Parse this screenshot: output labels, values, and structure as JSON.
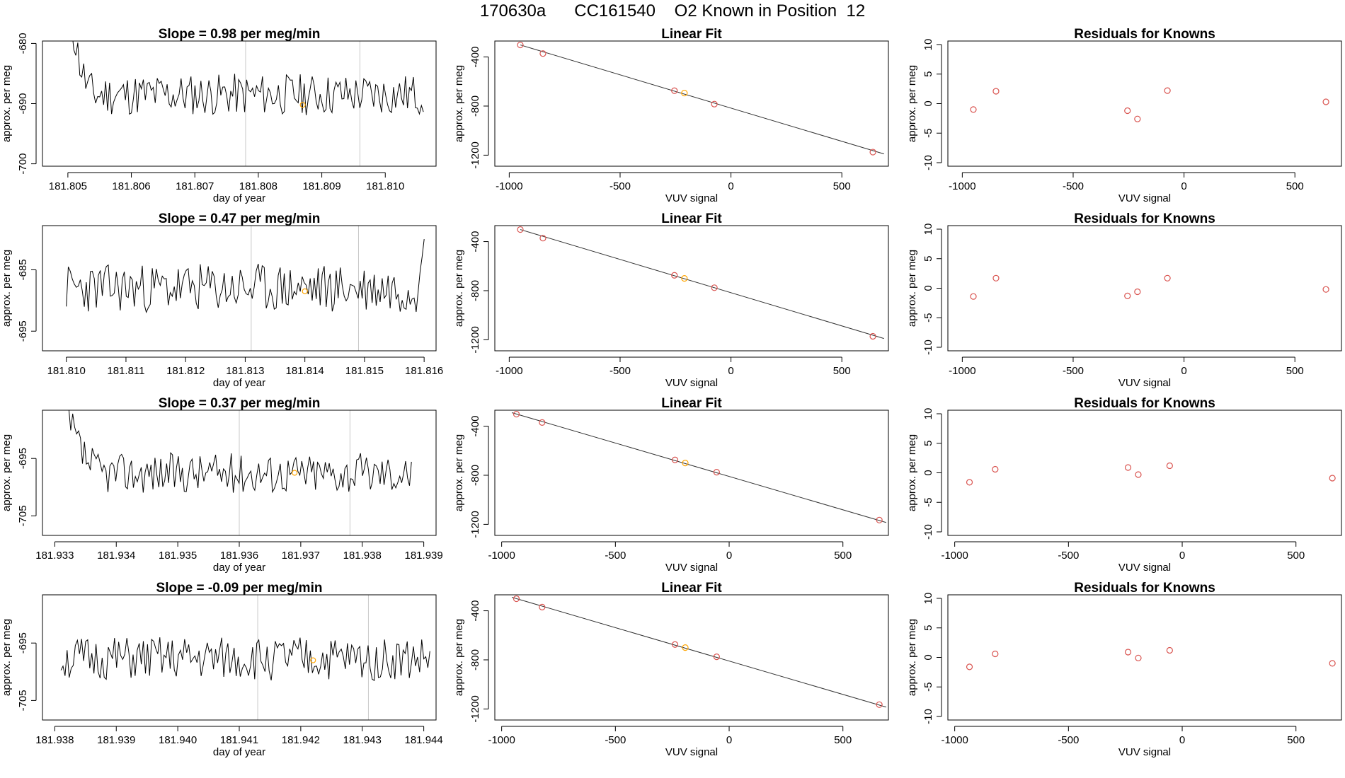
{
  "page": {
    "title": "170630a      CC161540    O2 Known in Position  12"
  },
  "chart_data": [
    {
      "type": "line",
      "row": 0,
      "title": "Slope =  0.98  per meg/min",
      "xlabel": "day of year",
      "ylabel": "approx. per meg",
      "xlim": [
        181.8046,
        181.8108
      ],
      "ylim": [
        -700.4,
        -679.6
      ],
      "xticks": [
        "181.805",
        "181.806",
        "181.807",
        "181.808",
        "181.809",
        "181.810"
      ],
      "yticks": [
        "-680",
        "-690",
        "-700"
      ],
      "vlines": [
        181.8078,
        181.8096
      ],
      "marker": {
        "x": 181.8087,
        "y": -690.2,
        "color": "#FFA500"
      },
      "series": [
        {
          "x_start": 181.805,
          "x_end": 181.8106,
          "n": 180,
          "baseline": -688.5,
          "amplitude": 3.5,
          "seed": 11,
          "spike_start": -672,
          "spike_len": 14
        }
      ]
    },
    {
      "type": "line",
      "row": 1,
      "title": "Slope =  0.47  per meg/min",
      "xlabel": "day of year",
      "ylabel": "approx. per meg",
      "xlim": [
        181.8096,
        181.8162
      ],
      "ylim": [
        -698.2,
        -677.8
      ],
      "xticks": [
        "181.810",
        "181.811",
        "181.812",
        "181.813",
        "181.814",
        "181.815",
        "181.816"
      ],
      "yticks": [
        "-685",
        "-695"
      ],
      "vlines": [
        181.8131,
        181.8149
      ],
      "marker": {
        "x": 181.814,
        "y": -688.5,
        "color": "#FFA500"
      },
      "series": [
        {
          "x_start": 181.81,
          "x_end": 181.816,
          "n": 180,
          "baseline": -688.0,
          "amplitude": 4.0,
          "seed": 23,
          "end_rise": -680
        }
      ]
    },
    {
      "type": "line",
      "row": 2,
      "title": "Slope =  0.37  per meg/min",
      "xlabel": "day of year",
      "ylabel": "approx. per meg",
      "xlim": [
        181.9328,
        181.9392
      ],
      "ylim": [
        -708.4,
        -686.6
      ],
      "xticks": [
        "181.933",
        "181.934",
        "181.935",
        "181.936",
        "181.937",
        "181.938",
        "181.939"
      ],
      "yticks": [
        "-695",
        "-705"
      ],
      "vlines": [
        181.936,
        181.9378
      ],
      "marker": {
        "x": 181.9369,
        "y": -697.5,
        "color": "#FFA500"
      },
      "series": [
        {
          "x_start": 181.9331,
          "x_end": 181.9388,
          "n": 180,
          "baseline": -697.5,
          "amplitude": 3.5,
          "seed": 37,
          "spike_start": -684,
          "spike_len": 22
        }
      ]
    },
    {
      "type": "line",
      "row": 3,
      "title": "Slope =  -0.09  per meg/min",
      "xlabel": "day of year",
      "ylabel": "approx. per meg",
      "xlim": [
        181.9378,
        181.9442
      ],
      "ylim": [
        -708.4,
        -686.6
      ],
      "xticks": [
        "181.938",
        "181.939",
        "181.940",
        "181.941",
        "181.942",
        "181.943",
        "181.944"
      ],
      "yticks": [
        "-695",
        "-705"
      ],
      "vlines": [
        181.9413,
        181.9431
      ],
      "marker": {
        "x": 181.9422,
        "y": -698.0,
        "color": "#FFA500"
      },
      "series": [
        {
          "x_start": 181.9381,
          "x_end": 181.9441,
          "n": 180,
          "baseline": -697.8,
          "amplitude": 3.8,
          "seed": 51
        }
      ]
    },
    {
      "type": "scatter",
      "row": 0,
      "title": "Linear Fit",
      "xlabel": "VUV signal",
      "ylabel": "approx. per meg",
      "xlim": [
        -1065,
        710
      ],
      "ylim": [
        -1290,
        -270
      ],
      "xticks": [
        "-1000",
        "-500",
        "0",
        "500"
      ],
      "yticks": [
        "-400",
        "-800",
        "-1200"
      ],
      "fit": {
        "x": [
          -950,
          690
        ],
        "y": [
          -302,
          -1190
        ]
      },
      "points": [
        {
          "x": -950,
          "y": -302,
          "color": "#D9534F"
        },
        {
          "x": -848,
          "y": -372,
          "color": "#D9534F"
        },
        {
          "x": -255,
          "y": -675,
          "color": "#D9534F"
        },
        {
          "x": -210,
          "y": -694,
          "color": "#FFA500"
        },
        {
          "x": -75,
          "y": -784,
          "color": "#D9534F"
        },
        {
          "x": 640,
          "y": -1175,
          "color": "#D9534F"
        }
      ]
    },
    {
      "type": "scatter",
      "row": 1,
      "title": "Linear Fit",
      "xlabel": "VUV signal",
      "ylabel": "approx. per meg",
      "xlim": [
        -1065,
        710
      ],
      "ylim": [
        -1290,
        -270
      ],
      "xticks": [
        "-1000",
        "-500",
        "0",
        "500"
      ],
      "yticks": [
        "-400",
        "-800",
        "-1200"
      ],
      "fit": {
        "x": [
          -950,
          690
        ],
        "y": [
          -302,
          -1190
        ]
      },
      "points": [
        {
          "x": -950,
          "y": -302,
          "color": "#D9534F"
        },
        {
          "x": -848,
          "y": -372,
          "color": "#D9534F"
        },
        {
          "x": -255,
          "y": -675,
          "color": "#D9534F"
        },
        {
          "x": -210,
          "y": -700,
          "color": "#FFA500"
        },
        {
          "x": -75,
          "y": -776,
          "color": "#D9534F"
        },
        {
          "x": 640,
          "y": -1172,
          "color": "#D9534F"
        }
      ]
    },
    {
      "type": "scatter",
      "row": 2,
      "title": "Linear Fit",
      "xlabel": "VUV signal",
      "ylabel": "approx. per meg",
      "xlim": [
        -1030,
        700
      ],
      "ylim": [
        -1290,
        -270
      ],
      "xticks": [
        "-1000",
        "-500",
        "0",
        "500"
      ],
      "yticks": [
        "-400",
        "-800",
        "-1200"
      ],
      "fit": {
        "x": [
          -955,
          690
        ],
        "y": [
          -290,
          -1185
        ]
      },
      "points": [
        {
          "x": -935,
          "y": -302,
          "color": "#D9534F"
        },
        {
          "x": -822,
          "y": -370,
          "color": "#D9534F"
        },
        {
          "x": -238,
          "y": -675,
          "color": "#D9534F"
        },
        {
          "x": -193,
          "y": -700,
          "color": "#FFA500"
        },
        {
          "x": -55,
          "y": -775,
          "color": "#D9534F"
        },
        {
          "x": 660,
          "y": -1165,
          "color": "#D9534F"
        }
      ]
    },
    {
      "type": "scatter",
      "row": 3,
      "title": "Linear Fit",
      "xlabel": "VUV signal",
      "ylabel": "approx. per meg",
      "xlim": [
        -1030,
        700
      ],
      "ylim": [
        -1290,
        -270
      ],
      "xticks": [
        "-1000",
        "-500",
        "0",
        "500"
      ],
      "yticks": [
        "-400",
        "-800",
        "-1200"
      ],
      "fit": {
        "x": [
          -955,
          690
        ],
        "y": [
          -290,
          -1185
        ]
      },
      "points": [
        {
          "x": -935,
          "y": -302,
          "color": "#D9534F"
        },
        {
          "x": -822,
          "y": -370,
          "color": "#D9534F"
        },
        {
          "x": -238,
          "y": -675,
          "color": "#D9534F"
        },
        {
          "x": -193,
          "y": -700,
          "color": "#FFA500"
        },
        {
          "x": -55,
          "y": -775,
          "color": "#D9534F"
        },
        {
          "x": 660,
          "y": -1165,
          "color": "#D9534F"
        }
      ]
    },
    {
      "type": "scatter",
      "row": 0,
      "title": "Residuals for Knowns",
      "xlabel": "VUV signal",
      "ylabel": "approx. per meg",
      "xlim": [
        -1065,
        710
      ],
      "ylim": [
        -10.6,
        10.6
      ],
      "xticks": [
        "-1000",
        "-500",
        "0",
        "500"
      ],
      "yticks": [
        "10",
        "5",
        "0",
        "-5",
        "-10"
      ],
      "points": [
        {
          "x": -950,
          "y": -1.0,
          "color": "#D9534F"
        },
        {
          "x": -848,
          "y": 2.1,
          "color": "#D9534F"
        },
        {
          "x": -255,
          "y": -1.2,
          "color": "#D9534F"
        },
        {
          "x": -210,
          "y": -2.6,
          "color": "#D9534F"
        },
        {
          "x": -75,
          "y": 2.2,
          "color": "#D9534F"
        },
        {
          "x": 640,
          "y": 0.3,
          "color": "#D9534F"
        }
      ]
    },
    {
      "type": "scatter",
      "row": 1,
      "title": "Residuals for Knowns",
      "xlabel": "VUV signal",
      "ylabel": "approx. per meg",
      "xlim": [
        -1065,
        710
      ],
      "ylim": [
        -10.6,
        10.6
      ],
      "xticks": [
        "-1000",
        "-500",
        "0",
        "500"
      ],
      "yticks": [
        "10",
        "5",
        "0",
        "-5",
        "-10"
      ],
      "points": [
        {
          "x": -950,
          "y": -1.4,
          "color": "#D9534F"
        },
        {
          "x": -848,
          "y": 1.7,
          "color": "#D9534F"
        },
        {
          "x": -255,
          "y": -1.3,
          "color": "#D9534F"
        },
        {
          "x": -210,
          "y": -0.6,
          "color": "#D9534F"
        },
        {
          "x": -75,
          "y": 1.7,
          "color": "#D9534F"
        },
        {
          "x": 640,
          "y": -0.2,
          "color": "#D9534F"
        }
      ]
    },
    {
      "type": "scatter",
      "row": 2,
      "title": "Residuals for Knowns",
      "xlabel": "VUV signal",
      "ylabel": "approx. per meg",
      "xlim": [
        -1030,
        700
      ],
      "ylim": [
        -10.6,
        10.6
      ],
      "xticks": [
        "-1000",
        "-500",
        "0",
        "500"
      ],
      "yticks": [
        "10",
        "5",
        "0",
        "-5",
        "-10"
      ],
      "points": [
        {
          "x": -935,
          "y": -1.6,
          "color": "#D9534F"
        },
        {
          "x": -822,
          "y": 0.6,
          "color": "#D9534F"
        },
        {
          "x": -238,
          "y": 0.9,
          "color": "#D9534F"
        },
        {
          "x": -193,
          "y": -0.3,
          "color": "#D9534F"
        },
        {
          "x": -55,
          "y": 1.2,
          "color": "#D9534F"
        },
        {
          "x": 660,
          "y": -0.9,
          "color": "#D9534F"
        }
      ]
    },
    {
      "type": "scatter",
      "row": 3,
      "title": "Residuals for Knowns",
      "xlabel": "VUV signal",
      "ylabel": "approx. per meg",
      "xlim": [
        -1030,
        700
      ],
      "ylim": [
        -10.6,
        10.6
      ],
      "xticks": [
        "-1000",
        "-500",
        "0",
        "500"
      ],
      "yticks": [
        "10",
        "5",
        "0",
        "-5",
        "-10"
      ],
      "points": [
        {
          "x": -935,
          "y": -1.6,
          "color": "#D9534F"
        },
        {
          "x": -822,
          "y": 0.6,
          "color": "#D9534F"
        },
        {
          "x": -238,
          "y": 0.9,
          "color": "#D9534F"
        },
        {
          "x": -193,
          "y": -0.1,
          "color": "#D9534F"
        },
        {
          "x": -55,
          "y": 1.2,
          "color": "#D9534F"
        },
        {
          "x": 660,
          "y": -1.0,
          "color": "#D9534F"
        }
      ]
    }
  ]
}
